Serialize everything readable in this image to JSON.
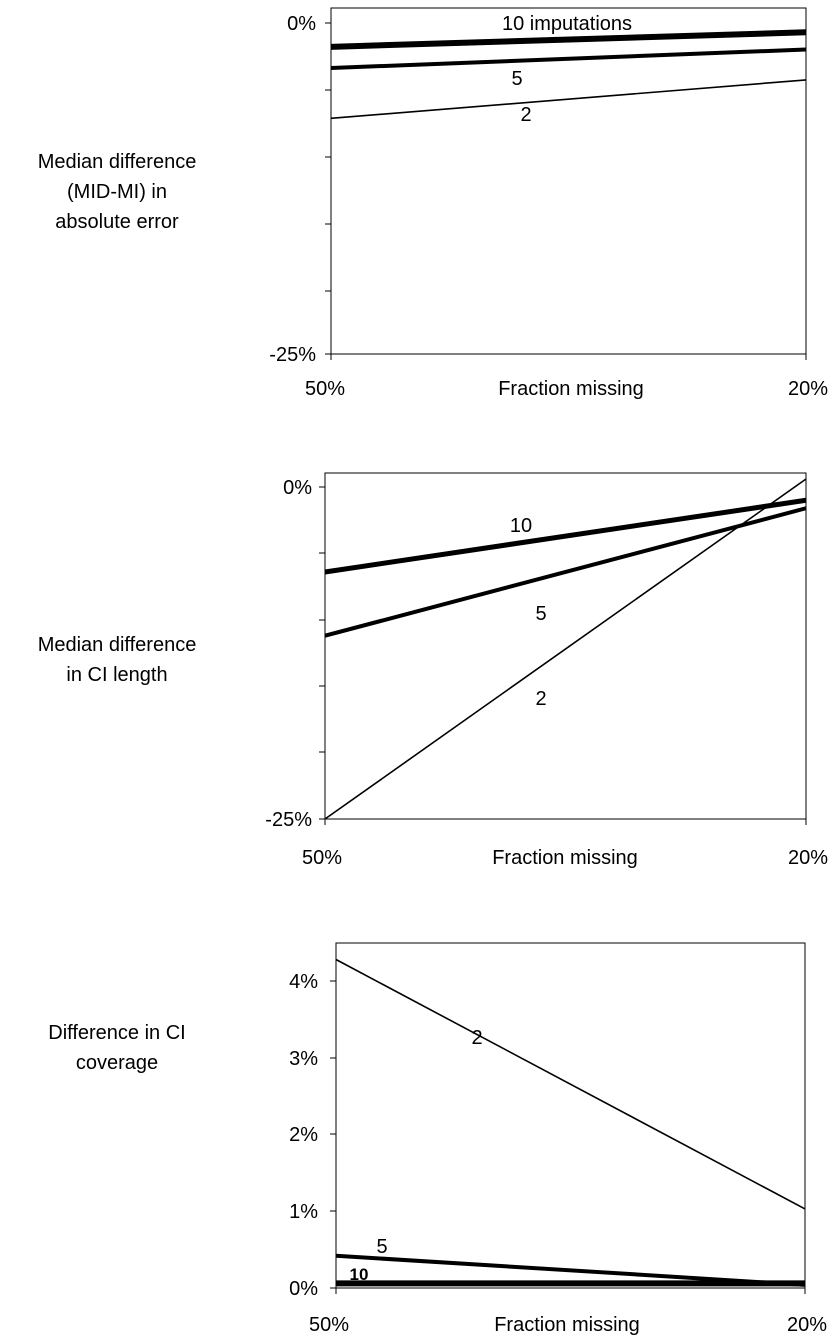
{
  "chart_data": [
    {
      "type": "line",
      "ylabel": [
        "Median difference",
        "(MID-MI) in",
        "absolute error"
      ],
      "xlabel": "Fraction missing",
      "x_tick_labels": [
        "50%",
        "20%"
      ],
      "x": [
        50,
        20
      ],
      "ylim": [
        -25,
        0
      ],
      "y_tick_labels": [
        "0%",
        "-25%"
      ],
      "grid": false,
      "series": [
        {
          "name": "10 imputations",
          "values": [
            -1.8,
            -0.7
          ],
          "width": "thick"
        },
        {
          "name": "5",
          "values": [
            -3.4,
            -2.0
          ],
          "width": "thick"
        },
        {
          "name": "2",
          "values": [
            -7.2,
            -4.3
          ],
          "width": "thin"
        }
      ]
    },
    {
      "type": "line",
      "ylabel": [
        "Median difference",
        "in CI length"
      ],
      "xlabel": "Fraction missing",
      "x_tick_labels": [
        "50%",
        "20%"
      ],
      "x": [
        50,
        20
      ],
      "ylim": [
        -25,
        0
      ],
      "y_tick_labels": [
        "0%",
        "-25%"
      ],
      "grid": false,
      "series": [
        {
          "name": "10",
          "values": [
            -6.4,
            -1.0
          ],
          "width": "thick"
        },
        {
          "name": "5",
          "values": [
            -11.2,
            -1.6
          ],
          "width": "thick"
        },
        {
          "name": "2",
          "values": [
            -25.0,
            0.6
          ],
          "width": "thin"
        }
      ]
    },
    {
      "type": "line",
      "ylabel": [
        "Difference in CI",
        "coverage"
      ],
      "xlabel": "Fraction missing",
      "x_tick_labels": [
        "50%",
        "20%"
      ],
      "x": [
        50,
        20
      ],
      "ylim": [
        0,
        4.5
      ],
      "y_tick_labels": [
        "0%",
        "1%",
        "2%",
        "3%",
        "4%"
      ],
      "grid": false,
      "series": [
        {
          "name": "2",
          "values": [
            4.28,
            1.03
          ],
          "width": "thin"
        },
        {
          "name": "5",
          "values": [
            0.42,
            0.04
          ],
          "width": "thick"
        },
        {
          "name": "10",
          "values": [
            0.06,
            0.06
          ],
          "width": "thick"
        }
      ]
    }
  ]
}
